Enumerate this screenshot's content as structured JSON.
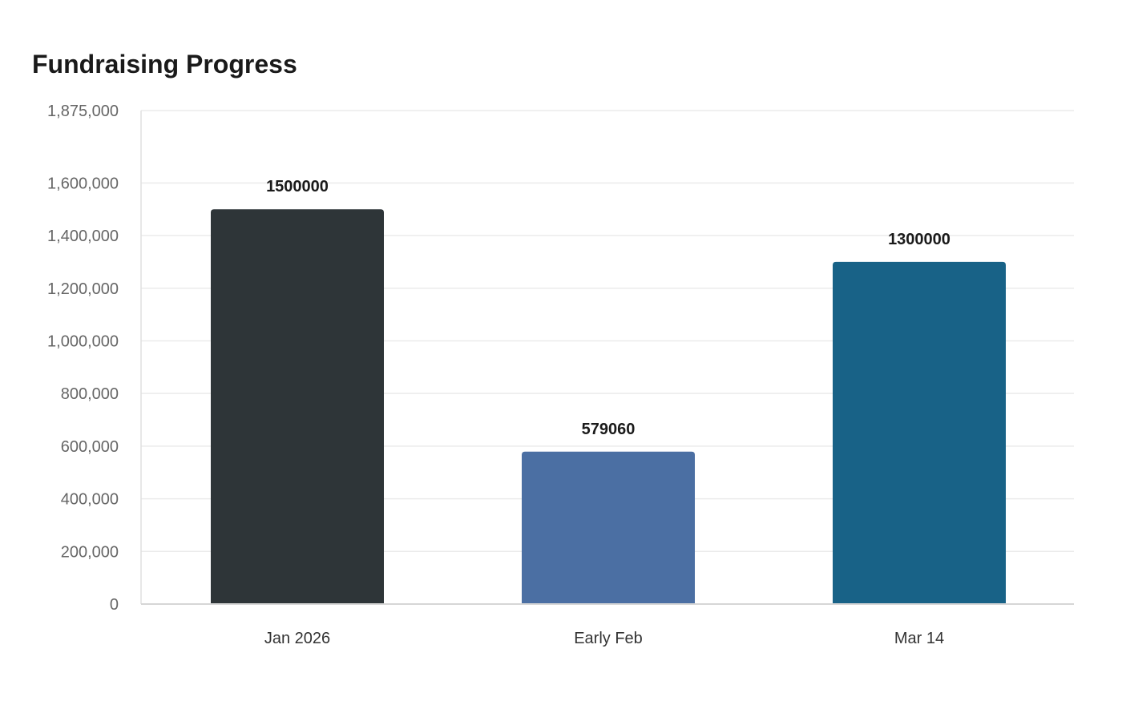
{
  "chart_data": {
    "type": "bar",
    "title": "Fundraising Progress",
    "xlabel": "",
    "ylabel": "",
    "categories": [
      "Jan 2026",
      "Early Feb",
      "Mar 14"
    ],
    "values": [
      1500000,
      579060,
      1300000
    ],
    "data_labels": [
      "1500000",
      "579060",
      "1300000"
    ],
    "colors": [
      "#2e3538",
      "#4b6fa3",
      "#186287"
    ],
    "ylim": [
      0,
      1875000
    ],
    "yticks": [
      0,
      200000,
      400000,
      600000,
      800000,
      1000000,
      1200000,
      1400000,
      1600000,
      1875000
    ],
    "ytick_labels": [
      "0",
      "200,000",
      "400,000",
      "600,000",
      "800,000",
      "1,000,000",
      "1,200,000",
      "1,400,000",
      "1,600,000",
      "1,875,000"
    ],
    "grid": true,
    "legend": "none"
  }
}
